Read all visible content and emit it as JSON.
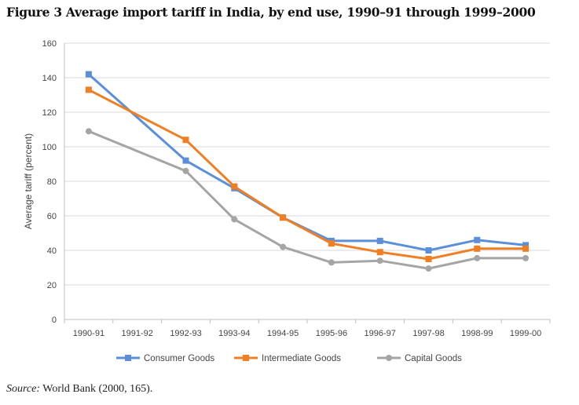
{
  "figure": {
    "title": "Figure 3 Average import tariff in India, by end use, 1990–91 through 1999–2000",
    "source_label": "Source:",
    "source_text": " World Bank (2000, 165)."
  },
  "chart_data": {
    "type": "line",
    "title": "",
    "xlabel": "",
    "ylabel": "Average tariff (percent)",
    "ylim": [
      0,
      160
    ],
    "yticks": [
      0,
      20,
      40,
      60,
      80,
      100,
      120,
      140,
      160
    ],
    "grid": true,
    "legend_position": "bottom",
    "categories": [
      "1990-91",
      "1991-92",
      "1992-93",
      "1993-94",
      "1994-95",
      "1995-96",
      "1996-97",
      "1997-98",
      "1998-99",
      "1999-00"
    ],
    "series": [
      {
        "name": "Consumer Goods",
        "color": "#5b8fd9",
        "marker": "square",
        "x": [
          0,
          2,
          3,
          4,
          5,
          6,
          7,
          8,
          9
        ],
        "values": [
          142,
          92,
          76,
          59,
          45.5,
          45.5,
          40,
          46,
          43
        ]
      },
      {
        "name": "Intermediate Goods",
        "color": "#f07f24",
        "marker": "square",
        "x": [
          0,
          2,
          3,
          4,
          5,
          6,
          7,
          8,
          9
        ],
        "values": [
          133,
          104,
          77,
          59,
          44,
          39,
          35,
          41,
          41
        ]
      },
      {
        "name": "Capital Goods",
        "color": "#a5a5a5",
        "marker": "circle",
        "x": [
          0,
          2,
          3,
          4,
          5,
          6,
          7,
          8,
          9
        ],
        "values": [
          109,
          86,
          58,
          42,
          33,
          34,
          29.5,
          35.5,
          35.5
        ]
      }
    ]
  }
}
